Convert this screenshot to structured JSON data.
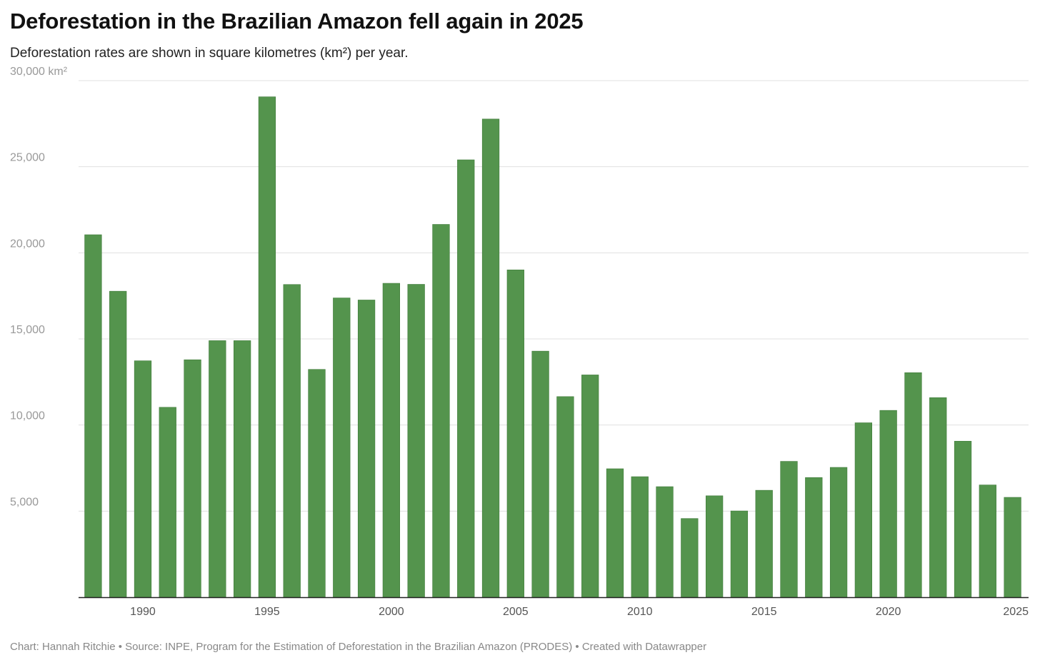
{
  "colors": {
    "bar": "#54944d",
    "gridline": "#e0e0e0",
    "axis": "#222222"
  },
  "chart_data": {
    "type": "bar",
    "title": "Deforestation in the Brazilian Amazon fell again in 2025",
    "subtitle": "Deforestation rates are shown in square kilometres (km²) per year.",
    "xlabel": "",
    "ylabel": "",
    "ylim": [
      0,
      30000
    ],
    "y_ticks": [
      5000,
      10000,
      15000,
      20000,
      25000,
      30000
    ],
    "y_tick_labels": [
      "5,000",
      "10,000",
      "15,000",
      "20,000",
      "25,000",
      "30,000 km²"
    ],
    "x_tick_labels": [
      "1990",
      "1995",
      "2000",
      "2005",
      "2010",
      "2015",
      "2020",
      "2025"
    ],
    "categories": [
      1988,
      1989,
      1990,
      1991,
      1992,
      1993,
      1994,
      1995,
      1996,
      1997,
      1998,
      1999,
      2000,
      2001,
      2002,
      2003,
      2004,
      2005,
      2006,
      2007,
      2008,
      2009,
      2010,
      2011,
      2012,
      2013,
      2014,
      2015,
      2016,
      2017,
      2018,
      2019,
      2020,
      2021,
      2022,
      2023,
      2024,
      2025
    ],
    "values": [
      21050,
      17770,
      13730,
      11030,
      13790,
      14900,
      14900,
      29060,
      18160,
      13230,
      17380,
      17260,
      18230,
      18170,
      21650,
      25400,
      27770,
      19010,
      14290,
      11650,
      12910,
      7460,
      7000,
      6420,
      4570,
      5890,
      5010,
      6210,
      7890,
      6950,
      7540,
      10130,
      10850,
      13040,
      11590,
      9060,
      6520,
      5800
    ],
    "grid": true,
    "legend": "none"
  },
  "footer": "Chart: Hannah Ritchie • Source: INPE, Program for the Estimation of Deforestation in the Brazilian Amazon (PRODES) • Created with Datawrapper"
}
